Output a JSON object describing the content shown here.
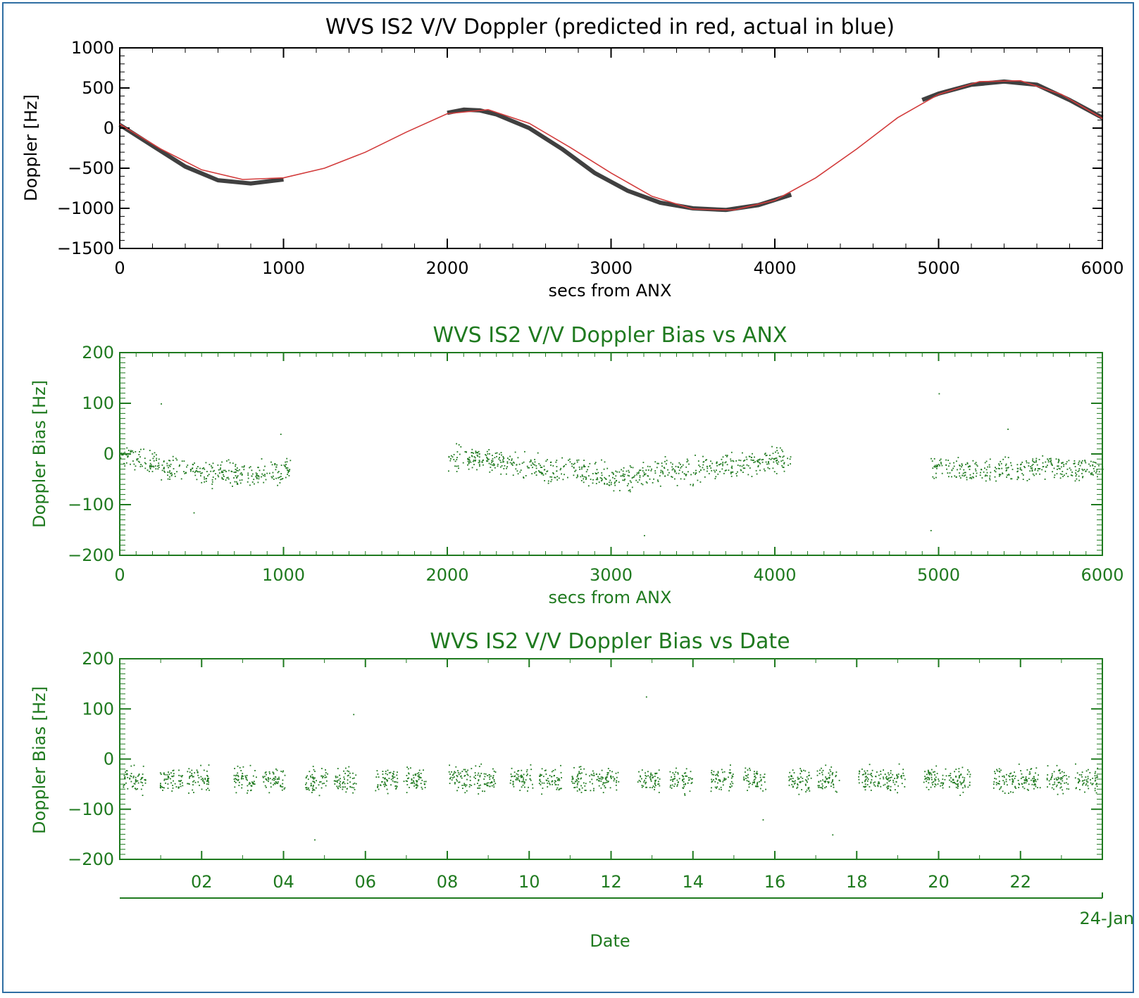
{
  "colors": {
    "axis_top": "#000000",
    "predicted": "#d23b3b",
    "actual": "#000000",
    "green": "#1f7a1f"
  },
  "chart_data": [
    {
      "type": "line",
      "title": "WVS IS2 V/V Doppler (predicted in red, actual in blue)",
      "xlabel": "secs from ANX",
      "ylabel": "Doppler [Hz]",
      "xlim": [
        0,
        6000
      ],
      "ylim": [
        -1500,
        1000
      ],
      "x_ticks": [
        "0",
        "1000",
        "2000",
        "3000",
        "4000",
        "5000",
        "6000"
      ],
      "y_ticks": [
        "1000",
        "500",
        "0",
        "-500",
        "-1000",
        "-1500"
      ],
      "series": [
        {
          "name": "predicted",
          "x": [
            0,
            250,
            500,
            750,
            1000,
            1250,
            1500,
            1750,
            2000,
            2250,
            2500,
            2750,
            3000,
            3250,
            3500,
            3750,
            4000,
            4250,
            4500,
            4750,
            5000,
            5250,
            5500,
            5750,
            6000
          ],
          "values": [
            50,
            -260,
            -520,
            -640,
            -620,
            -500,
            -300,
            -50,
            180,
            230,
            60,
            -240,
            -560,
            -850,
            -1010,
            -1020,
            -900,
            -620,
            -260,
            130,
            420,
            580,
            590,
            420,
            120
          ]
        },
        {
          "name": "actual",
          "segments": [
            {
              "x": [
                0,
                200,
                400,
                600,
                800,
                1000
              ],
              "values": [
                40,
                -220,
                -480,
                -650,
                -690,
                -640
              ]
            },
            {
              "x": [
                2000,
                2100,
                2200,
                2300,
                2500,
                2700,
                2900,
                3100,
                3300,
                3500,
                3700,
                3900,
                4100
              ],
              "values": [
                190,
                230,
                220,
                170,
                0,
                -260,
                -560,
                -780,
                -930,
                -1000,
                -1020,
                -960,
                -830
              ]
            },
            {
              "x": [
                4900,
                5000,
                5200,
                5400,
                5600,
                5800,
                6000
              ],
              "values": [
                350,
                430,
                540,
                580,
                540,
                350,
                130
              ]
            }
          ]
        }
      ]
    },
    {
      "type": "scatter",
      "title": "WVS IS2 V/V Doppler Bias vs ANX",
      "xlabel": "secs from ANX",
      "ylabel": "Doppler Bias [Hz]",
      "xlim": [
        0,
        6000
      ],
      "ylim": [
        -200,
        200
      ],
      "x_ticks": [
        "0",
        "1000",
        "2000",
        "3000",
        "4000",
        "5000",
        "6000"
      ],
      "y_ticks": [
        "200",
        "100",
        "0",
        "-100",
        "-200"
      ],
      "clusters": [
        {
          "x": [
            0,
            1050
          ],
          "bias_center": [
            0,
            -40,
            -30
          ],
          "spread": 60
        },
        {
          "x": [
            2000,
            4100
          ],
          "bias_center": [
            -5,
            -45,
            -10
          ],
          "spread": 70
        },
        {
          "x": [
            4950,
            6000
          ],
          "bias_center": [
            -30,
            -30,
            -25
          ],
          "spread": 55
        }
      ]
    },
    {
      "type": "scatter",
      "title": "WVS IS2 V/V Doppler Bias vs Date",
      "xlabel": "Date",
      "ylabel": "Doppler Bias [Hz]",
      "xlim": [
        "2007-01-00",
        "2007-01-24"
      ],
      "ylim": [
        -200,
        200
      ],
      "x_ticks": [
        "02",
        "04",
        "06",
        "08",
        "10",
        "12",
        "14",
        "16",
        "18",
        "20",
        "22"
      ],
      "x_sublabel": "24-Jan",
      "y_ticks": [
        "200",
        "100",
        "0",
        "-100",
        "-200"
      ],
      "burst_days": [
        0.35,
        1.25,
        1.9,
        3.05,
        3.75,
        4.8,
        5.5,
        6.5,
        7.2,
        8.3,
        8.9,
        9.8,
        10.5,
        11.3,
        11.9,
        12.9,
        13.7,
        14.7,
        15.5,
        16.6,
        17.3,
        18.3,
        18.9,
        19.9,
        20.5,
        21.6,
        22.2,
        22.9,
        23.6
      ],
      "bias_center": -40,
      "spread": 80
    }
  ]
}
